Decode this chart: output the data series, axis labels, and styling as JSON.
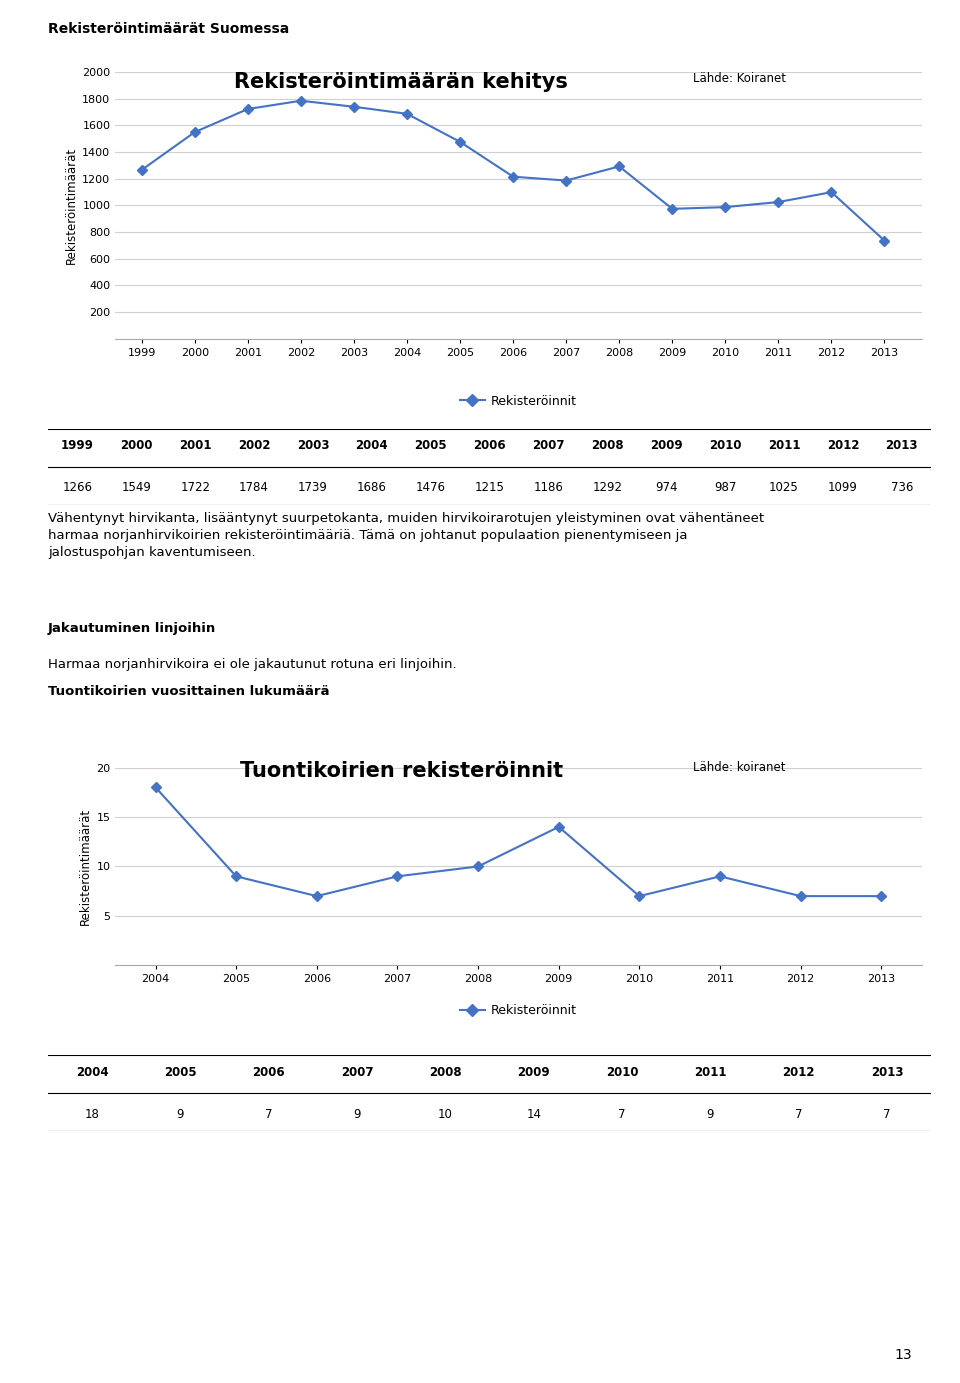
{
  "page_title": "Rekisteröintimäärät Suomessa",
  "chart1": {
    "title": "Rekisteröintimäärän kehitys",
    "source": "Lähde: Koiranet",
    "years": [
      1999,
      2000,
      2001,
      2002,
      2003,
      2004,
      2005,
      2006,
      2007,
      2008,
      2009,
      2010,
      2011,
      2012,
      2013
    ],
    "values": [
      1266,
      1549,
      1722,
      1784,
      1739,
      1686,
      1476,
      1215,
      1186,
      1292,
      974,
      987,
      1025,
      1099,
      736
    ],
    "ylabel": "Rekisteröintimäärät",
    "legend_label": "Rekisteröinnit",
    "ylim": [
      0,
      2000
    ],
    "yticks": [
      0,
      200,
      400,
      600,
      800,
      1000,
      1200,
      1400,
      1600,
      1800,
      2000
    ],
    "line_color": "#4472C4",
    "marker": "D",
    "outer_bg": "#B8CCE4",
    "inner_bg": "#FFFFFF"
  },
  "table1": {
    "header": [
      "1999",
      "2000",
      "2001",
      "2002",
      "2003",
      "2004",
      "2005",
      "2006",
      "2007",
      "2008",
      "2009",
      "2010",
      "2011",
      "2012",
      "2013"
    ],
    "values": [
      "1266",
      "1549",
      "1722",
      "1784",
      "1739",
      "1686",
      "1476",
      "1215",
      "1186",
      "1292",
      "974",
      "987",
      "1025",
      "1099",
      "736"
    ]
  },
  "text_block": "Vähentynyt hirvikanta, lisääntynyt suurpetokanta, muiden hirvikoirarotujen yleistyminen ovat vähentäneet harmaa norjanhirvikoirien rekisteröintimääriä. Tämä on johtanut populaation pienentymiseen ja jalostuspohjan kaventumiseen.",
  "section2_title": "Jakautuminen linjoihin",
  "section2_text": "Harmaa norjanhirvikoira ei ole jakautunut rotuna eri linjoihin.",
  "section3_title": "Tuontikoirien vuosittainen lukumäärä",
  "chart2": {
    "title": "Tuontikoirien rekisteröinnit",
    "source": "Lähde: koiranet",
    "years": [
      2004,
      2005,
      2006,
      2007,
      2008,
      2009,
      2010,
      2011,
      2012,
      2013
    ],
    "values": [
      18,
      9,
      7,
      9,
      10,
      14,
      7,
      9,
      7,
      7
    ],
    "ylabel": "Rekisteröintimäärät",
    "legend_label": "Rekisteröinnit",
    "ylim": [
      0,
      20
    ],
    "yticks": [
      0,
      5,
      10,
      15,
      20
    ],
    "line_color": "#4472C4",
    "marker": "D",
    "outer_bg": "#B8CCE4",
    "inner_bg": "#FFFFFF"
  },
  "table2": {
    "header": [
      "2004",
      "2005",
      "2006",
      "2007",
      "2008",
      "2009",
      "2010",
      "2011",
      "2012",
      "2013"
    ],
    "values": [
      "18",
      "9",
      "7",
      "9",
      "10",
      "14",
      "7",
      "9",
      "7",
      "7"
    ]
  },
  "page_number": "13"
}
